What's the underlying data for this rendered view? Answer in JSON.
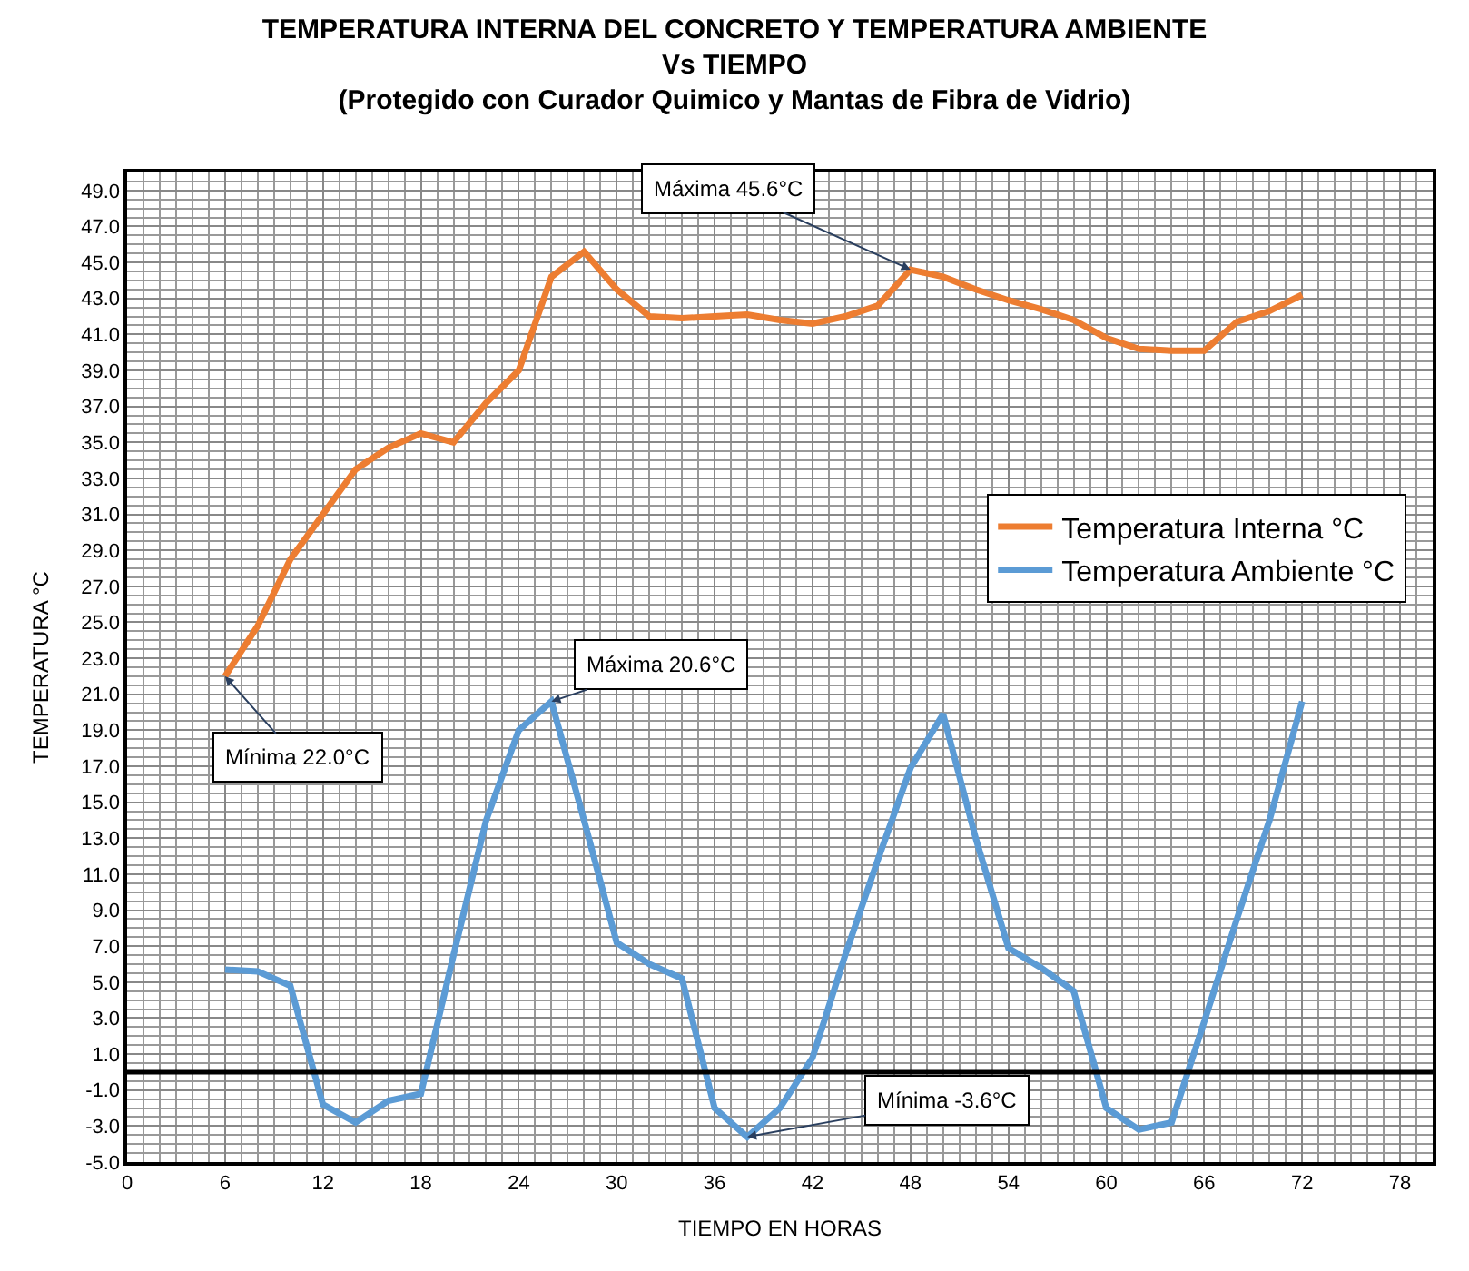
{
  "chart_data": {
    "type": "line",
    "title": "TEMPERATURA INTERNA DEL CONCRETO Y TEMPERATURA AMBIENTE\nVs TIEMPO\n(Protegido con Curador Quimico y Mantas de Fibra de Vidrio)",
    "xlabel": "TIEMPO EN HORAS",
    "ylabel": "TEMPERATURA °C",
    "x": [
      6,
      8,
      10,
      12,
      14,
      16,
      18,
      20,
      22,
      24,
      26,
      28,
      30,
      32,
      34,
      36,
      38,
      40,
      42,
      44,
      46,
      48,
      50,
      52,
      54,
      56,
      58,
      60,
      62,
      64,
      66,
      68,
      70,
      72
    ],
    "series": [
      {
        "name": "Temperatura Interna °C",
        "color": "#ed7d31",
        "values": [
          22.0,
          24.8,
          28.5,
          31.0,
          33.5,
          34.7,
          35.5,
          35.0,
          37.2,
          39.0,
          44.2,
          45.6,
          43.5,
          42.0,
          41.9,
          42.0,
          42.1,
          41.8,
          41.6,
          42.0,
          42.6,
          44.6,
          44.2,
          43.5,
          42.9,
          42.4,
          41.8,
          40.8,
          40.2,
          40.1,
          40.1,
          41.7,
          42.3,
          43.2
        ]
      },
      {
        "name": "Temperatura Ambiente °C",
        "color": "#5b9bd5",
        "values": [
          5.7,
          5.6,
          4.8,
          -1.8,
          -2.8,
          -1.6,
          -1.2,
          6.5,
          14.0,
          19.0,
          20.6,
          14.0,
          7.2,
          6.0,
          5.2,
          -2.0,
          -3.6,
          -2.0,
          0.8,
          6.5,
          11.8,
          16.9,
          19.9,
          13.0,
          6.9,
          5.8,
          4.5,
          -2.0,
          -3.2,
          -2.8,
          2.8,
          8.5,
          14.0,
          20.6
        ]
      }
    ],
    "xlim": [
      0,
      80
    ],
    "xticks": [
      0,
      6,
      12,
      18,
      24,
      30,
      36,
      42,
      48,
      54,
      60,
      66,
      72,
      78
    ],
    "ylim": [
      -5,
      50
    ],
    "yticks": [
      {
        "value": -5,
        "label": "-5.0"
      },
      {
        "value": -3,
        "label": "-3.0"
      },
      {
        "value": -1,
        "label": "-1.0"
      },
      {
        "value": 1,
        "label": "1.0"
      },
      {
        "value": 3,
        "label": "3.0"
      },
      {
        "value": 5,
        "label": "5.0"
      },
      {
        "value": 7,
        "label": "7.0"
      },
      {
        "value": 9,
        "label": "9.0"
      },
      {
        "value": 11,
        "label": "11.0"
      },
      {
        "value": 13,
        "label": "13.0"
      },
      {
        "value": 15,
        "label": "15.0"
      },
      {
        "value": 17,
        "label": "17.0"
      },
      {
        "value": 19,
        "label": "19.0"
      },
      {
        "value": 21,
        "label": "21.0"
      },
      {
        "value": 23,
        "label": "23.0"
      },
      {
        "value": 25,
        "label": "25.0"
      },
      {
        "value": 27,
        "label": "27.0"
      },
      {
        "value": 29,
        "label": "29.0"
      },
      {
        "value": 31,
        "label": "31.0"
      },
      {
        "value": 33,
        "label": "33.0"
      },
      {
        "value": 35,
        "label": "35.0"
      },
      {
        "value": 37,
        "label": "37.0"
      },
      {
        "value": 39,
        "label": "39.0"
      },
      {
        "value": 41,
        "label": "41.0"
      },
      {
        "value": 43,
        "label": "43.0"
      },
      {
        "value": 45,
        "label": "45.0"
      },
      {
        "value": 47,
        "label": "47.0"
      },
      {
        "value": 49,
        "label": "49.0"
      }
    ],
    "ref_lines": [
      {
        "axis": "y",
        "value": 0,
        "color": "#000000"
      }
    ],
    "annotations": [
      {
        "text": "Máxima 45.6°C",
        "x": 48,
        "y": 44.6
      },
      {
        "text": "Máxima 20.6°C",
        "x": 26,
        "y": 20.6
      },
      {
        "text": "Mínima 22.0°C",
        "x": 6,
        "y": 22.0
      },
      {
        "text": "Mínima -3.6°C",
        "x": 38,
        "y": -3.6
      }
    ],
    "grid": true,
    "legend": "right",
    "marker": "none",
    "line_style": "solid"
  }
}
